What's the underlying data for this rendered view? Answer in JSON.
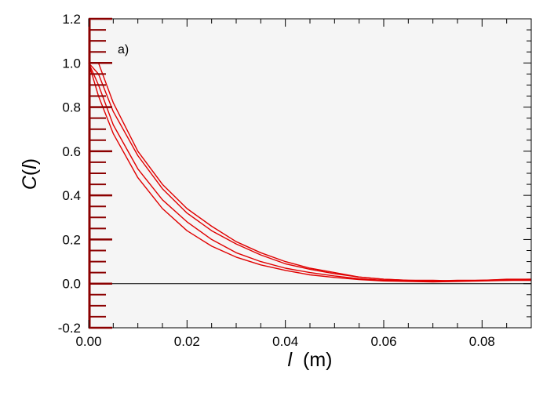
{
  "chart_data": {
    "type": "line",
    "panel_label": "a)",
    "xlabel": {
      "symbol": "l",
      "unit": "(m)"
    },
    "ylabel": {
      "prefix": "C(",
      "symbol": "l",
      "suffix": ")"
    },
    "xlim": [
      0.0,
      0.09
    ],
    "ylim": [
      -0.2,
      1.2
    ],
    "x_ticks": [
      {
        "value": 0.0,
        "label": "0.00"
      },
      {
        "value": 0.02,
        "label": "0.02"
      },
      {
        "value": 0.04,
        "label": "0.04"
      },
      {
        "value": 0.06,
        "label": "0.06"
      },
      {
        "value": 0.08,
        "label": "0.08"
      }
    ],
    "y_ticks": [
      {
        "value": -0.2,
        "label": "-0.2"
      },
      {
        "value": 0.0,
        "label": "0.0"
      },
      {
        "value": 0.2,
        "label": "0.2"
      },
      {
        "value": 0.4,
        "label": "0.4"
      },
      {
        "value": 0.6,
        "label": "0.6"
      },
      {
        "value": 0.8,
        "label": "0.8"
      },
      {
        "value": 1.0,
        "label": "1.0"
      },
      {
        "value": 1.2,
        "label": "1.2"
      }
    ],
    "grid": false,
    "reference_line_y": 0.0,
    "series_color": "#e00000",
    "axis_tick_color": "#8b0000",
    "plot_background": "#f5f5f5",
    "series": [
      {
        "x": [
          0.0,
          0.002,
          0.005,
          0.01,
          0.015,
          0.02,
          0.025,
          0.03,
          0.035,
          0.04,
          0.045,
          0.05,
          0.055,
          0.06,
          0.065,
          0.07,
          0.075,
          0.08,
          0.085,
          0.09
        ],
        "y": [
          1.0,
          1.0,
          0.82,
          0.6,
          0.45,
          0.34,
          0.26,
          0.19,
          0.14,
          0.1,
          0.07,
          0.05,
          0.03,
          0.02,
          0.015,
          0.012,
          0.015,
          0.015,
          0.02,
          0.02
        ]
      },
      {
        "x": [
          0.0,
          0.002,
          0.005,
          0.01,
          0.015,
          0.02,
          0.025,
          0.03,
          0.035,
          0.04,
          0.045,
          0.05,
          0.055,
          0.06,
          0.065,
          0.07,
          0.075,
          0.08,
          0.085,
          0.09
        ],
        "y": [
          1.0,
          0.95,
          0.78,
          0.58,
          0.43,
          0.32,
          0.24,
          0.18,
          0.13,
          0.09,
          0.065,
          0.045,
          0.03,
          0.02,
          0.015,
          0.015,
          0.012,
          0.015,
          0.018,
          0.02
        ]
      },
      {
        "x": [
          0.0,
          0.002,
          0.005,
          0.01,
          0.015,
          0.02,
          0.025,
          0.03,
          0.035,
          0.04,
          0.045,
          0.05,
          0.055,
          0.06,
          0.065,
          0.07,
          0.075,
          0.08,
          0.085,
          0.09
        ],
        "y": [
          1.0,
          0.9,
          0.72,
          0.52,
          0.38,
          0.28,
          0.2,
          0.14,
          0.1,
          0.07,
          0.05,
          0.035,
          0.022,
          0.015,
          0.012,
          0.01,
          0.012,
          0.015,
          0.015,
          0.018
        ]
      },
      {
        "x": [
          0.0,
          0.002,
          0.005,
          0.01,
          0.015,
          0.02,
          0.025,
          0.03,
          0.035,
          0.04,
          0.045,
          0.05,
          0.055,
          0.06,
          0.065,
          0.07,
          0.075,
          0.08,
          0.085,
          0.09
        ],
        "y": [
          1.0,
          0.85,
          0.68,
          0.48,
          0.34,
          0.24,
          0.17,
          0.12,
          0.085,
          0.06,
          0.04,
          0.028,
          0.018,
          0.012,
          0.01,
          0.008,
          0.01,
          0.012,
          0.015,
          0.015
        ]
      }
    ]
  }
}
